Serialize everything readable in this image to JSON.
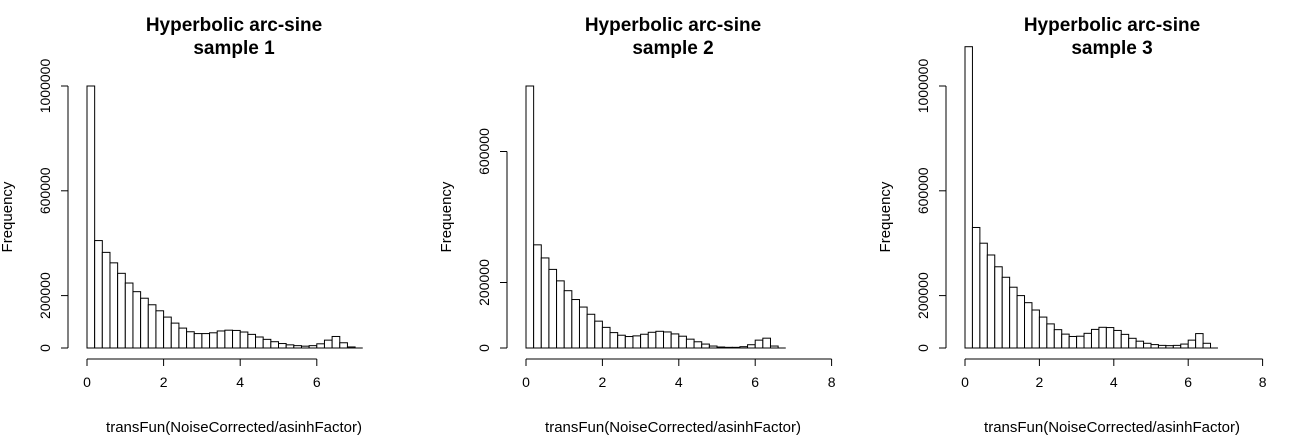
{
  "chart_data": [
    {
      "type": "bar",
      "title": "Hyperbolic arc-sine\nsample 1",
      "xlabel": "transFun(NoiseCorrected/asinhFactor)",
      "ylabel": "Frequency",
      "bin_width": 0.2,
      "x_start": 0,
      "xlim": [
        0,
        7.2
      ],
      "ylim": [
        0,
        1000000
      ],
      "x_ticks": [
        0,
        2,
        4,
        6
      ],
      "y_ticks": [
        0,
        200000,
        600000,
        1000000
      ],
      "values": [
        1000000,
        410000,
        365000,
        325000,
        285000,
        248000,
        215000,
        190000,
        165000,
        142000,
        118000,
        95000,
        76000,
        62000,
        55000,
        55000,
        58000,
        65000,
        68000,
        67000,
        61000,
        52000,
        42000,
        33000,
        24000,
        17000,
        12000,
        9000,
        7000,
        9000,
        16000,
        30000,
        44000,
        20000,
        4000,
        0
      ]
    },
    {
      "type": "bar",
      "title": "Hyperbolic arc-sine\nsample 2",
      "xlabel": "transFun(NoiseCorrected/asinhFactor)",
      "ylabel": "Frequency",
      "bin_width": 0.2,
      "x_start": 0,
      "xlim": [
        0,
        8
      ],
      "ylim": [
        0,
        800000
      ],
      "x_ticks": [
        0,
        2,
        4,
        6,
        8
      ],
      "y_ticks": [
        0,
        200000,
        600000
      ],
      "values": [
        800000,
        315000,
        275000,
        240000,
        205000,
        175000,
        148000,
        125000,
        103000,
        82000,
        63000,
        47000,
        39000,
        35000,
        37000,
        42000,
        48000,
        51000,
        49000,
        43000,
        36000,
        27000,
        19000,
        12000,
        6000,
        3000,
        2000,
        2000,
        4000,
        10000,
        24000,
        30000,
        6000,
        0
      ]
    },
    {
      "type": "bar",
      "title": "Hyperbolic arc-sine\nsample 3",
      "xlabel": "transFun(NoiseCorrected/asinhFactor)",
      "ylabel": "Frequency",
      "bin_width": 0.2,
      "x_start": 0,
      "xlim": [
        0,
        8
      ],
      "ylim": [
        0,
        1000000
      ],
      "x_ticks": [
        0,
        2,
        4,
        6,
        8
      ],
      "y_ticks": [
        0,
        200000,
        600000,
        1000000
      ],
      "values": [
        1150000,
        460000,
        400000,
        355000,
        310000,
        270000,
        232000,
        200000,
        173000,
        145000,
        118000,
        92000,
        70000,
        53000,
        44000,
        45000,
        56000,
        71000,
        79000,
        78000,
        67000,
        52000,
        37000,
        26000,
        18000,
        13000,
        10000,
        9000,
        10000,
        15000,
        30000,
        55000,
        18000,
        0
      ]
    }
  ]
}
